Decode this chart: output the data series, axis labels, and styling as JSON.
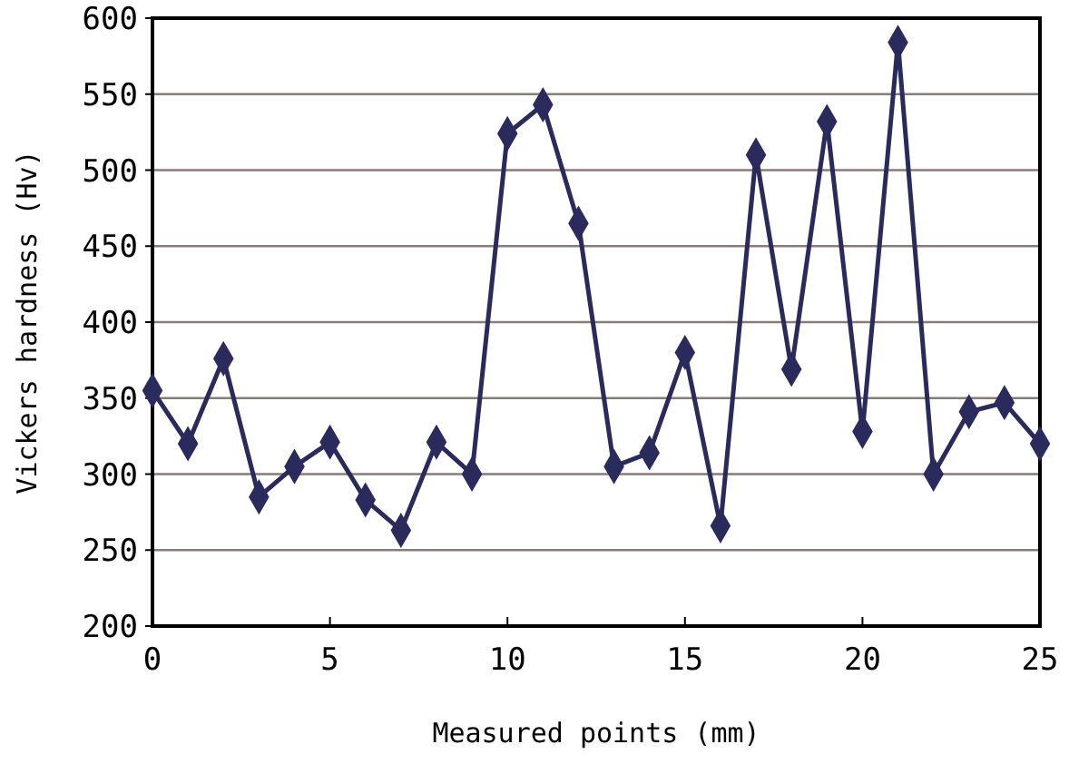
{
  "chart_data": {
    "type": "line",
    "xlabel": "Measured points (mm)",
    "ylabel": "Vickers hardness (Hv)",
    "x": [
      0,
      1,
      2,
      3,
      4,
      5,
      6,
      7,
      8,
      9,
      10,
      11,
      12,
      13,
      14,
      15,
      16,
      17,
      18,
      19,
      20,
      21,
      22,
      23,
      24,
      25
    ],
    "series": [
      {
        "color": "#2a2a5c",
        "values": [
          355,
          320,
          376,
          285,
          305,
          321,
          283,
          263,
          321,
          300,
          524,
          543,
          465,
          305,
          314,
          380,
          266,
          510,
          369,
          532,
          328,
          584,
          300,
          341,
          347,
          320
        ]
      }
    ],
    "xlim": [
      0,
      25
    ],
    "ylim": [
      200,
      600
    ],
    "xticks": [
      0,
      5,
      10,
      15,
      20,
      25
    ],
    "yticks": [
      200,
      250,
      300,
      350,
      400,
      450,
      500,
      550,
      600
    ],
    "grid": "y",
    "marker": "diamond",
    "line_style": "solid"
  }
}
